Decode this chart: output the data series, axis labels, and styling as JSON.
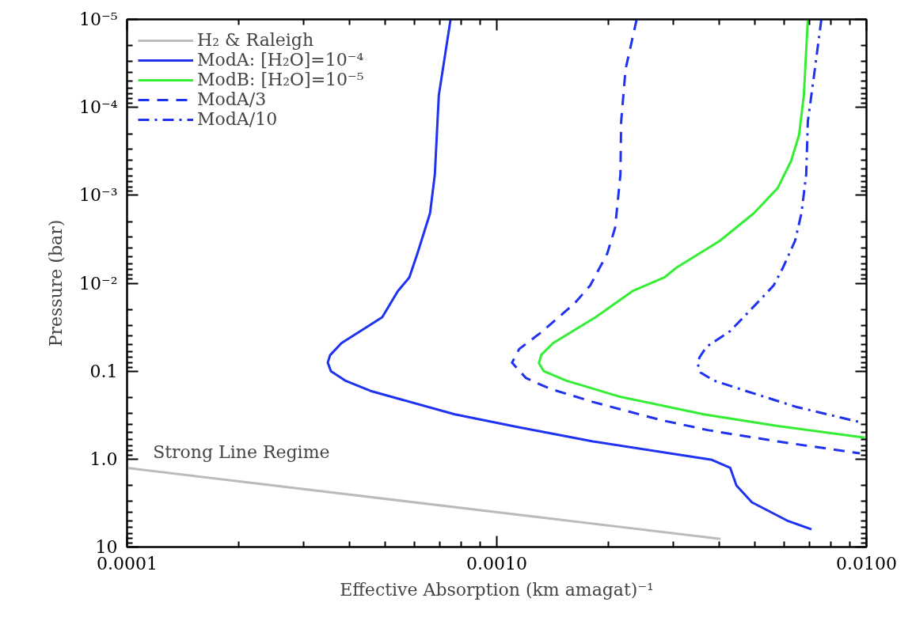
{
  "chart_data": {
    "type": "line",
    "xlabel": "Effective Absorption (km amagat)⁻¹",
    "ylabel": "Pressure (bar)",
    "log": "xy",
    "xlim": [
      0.0001,
      0.01
    ],
    "ylim": [
      10,
      1e-05
    ],
    "xticks": [
      {
        "value": 0.0001,
        "label": "0.0001"
      },
      {
        "value": 0.001,
        "label": "0.0010"
      },
      {
        "value": 0.01,
        "label": "0.0100"
      }
    ],
    "yticks": [
      {
        "value": 1e-05,
        "label": "10⁻⁵"
      },
      {
        "value": 0.0001,
        "label": "10⁻⁴"
      },
      {
        "value": 0.001,
        "label": "10⁻³"
      },
      {
        "value": 0.01,
        "label": "10⁻²"
      },
      {
        "value": 0.1,
        "label": "0.1"
      },
      {
        "value": 1,
        "label": "1.0"
      },
      {
        "value": 10,
        "label": "10"
      }
    ],
    "tick_labels": "xy",
    "grid": false,
    "legend": "top left",
    "marker": "none",
    "annotations": [
      "Strong Line Regime"
    ],
    "series": [
      {
        "name": "H₂ & Raleigh",
        "color": "#bbbbbb",
        "line_style": "solid",
        "x": [
          0.0001,
          0.00403
        ],
        "values": [
          1.26,
          8.1
        ]
      },
      {
        "name": "ModA: [H₂O]=10⁻⁴",
        "color": "#1e32f0",
        "line_style": "solid",
        "x": [
          0.00075,
          0.000697,
          0.00068,
          0.00066,
          0.00061,
          0.00058,
          0.00054,
          0.00049,
          0.00038,
          0.000354,
          0.000349,
          0.000356,
          0.000389,
          0.000456,
          0.00077,
          0.00113,
          0.00182,
          0.00382,
          0.00428,
          0.00445,
          0.0049,
          0.0061,
          0.0071
        ],
        "values": [
          1e-05,
          7.3e-05,
          0.00058,
          0.0016,
          0.0046,
          0.0086,
          0.0123,
          0.0244,
          0.048,
          0.066,
          0.08,
          0.1,
          0.128,
          0.168,
          0.31,
          0.43,
          0.63,
          1.02,
          1.26,
          2.0,
          3.1,
          5.0,
          6.3
        ]
      },
      {
        "name": "ModB: [H₂O]=10⁻⁵",
        "color": "#33ee33",
        "line_style": "solid",
        "x": [
          0.00694,
          0.00677,
          0.00657,
          0.00625,
          0.00575,
          0.00496,
          0.00401,
          0.00307,
          0.00284,
          0.00233,
          0.00185,
          0.00142,
          0.00132,
          0.0013,
          0.00134,
          0.00154,
          0.00214,
          0.00363,
          0.00575,
          0.0099
        ],
        "values": [
          1e-05,
          7.3e-05,
          0.000207,
          0.00041,
          0.00083,
          0.0016,
          0.0033,
          0.0066,
          0.0086,
          0.0123,
          0.0244,
          0.048,
          0.065,
          0.081,
          0.1,
          0.128,
          0.194,
          0.31,
          0.42,
          0.57
        ]
      },
      {
        "name": "ModA/3",
        "color": "#1e32f0",
        "line_style": "dashed",
        "x": [
          0.00239,
          0.00223,
          0.00217,
          0.00216,
          0.00209,
          0.00199,
          0.00179,
          0.00162,
          0.00131,
          0.00115,
          0.0011,
          0.0012,
          0.00139,
          0.00182,
          0.00278,
          0.00374,
          0.00575,
          0.0096
        ],
        "values": [
          1e-05,
          3.7e-05,
          0.000145,
          0.00058,
          0.00234,
          0.0046,
          0.0106,
          0.0171,
          0.037,
          0.056,
          0.08,
          0.12,
          0.158,
          0.224,
          0.36,
          0.47,
          0.63,
          0.86
        ]
      },
      {
        "name": "ModA/10",
        "color": "#1e32f0",
        "line_style": "dashdot",
        "x": [
          0.00755,
          0.00725,
          0.00694,
          0.00687,
          0.00667,
          0.00641,
          0.00595,
          0.00561,
          0.00504,
          0.00428,
          0.00369,
          0.00354,
          0.00349,
          0.00356,
          0.00387,
          0.00472,
          0.00644,
          0.0096
        ],
        "values": [
          1e-05,
          3.7e-05,
          0.000145,
          0.00058,
          0.0016,
          0.0033,
          0.0066,
          0.0106,
          0.0171,
          0.035,
          0.053,
          0.069,
          0.081,
          0.104,
          0.128,
          0.168,
          0.254,
          0.38
        ]
      }
    ]
  }
}
